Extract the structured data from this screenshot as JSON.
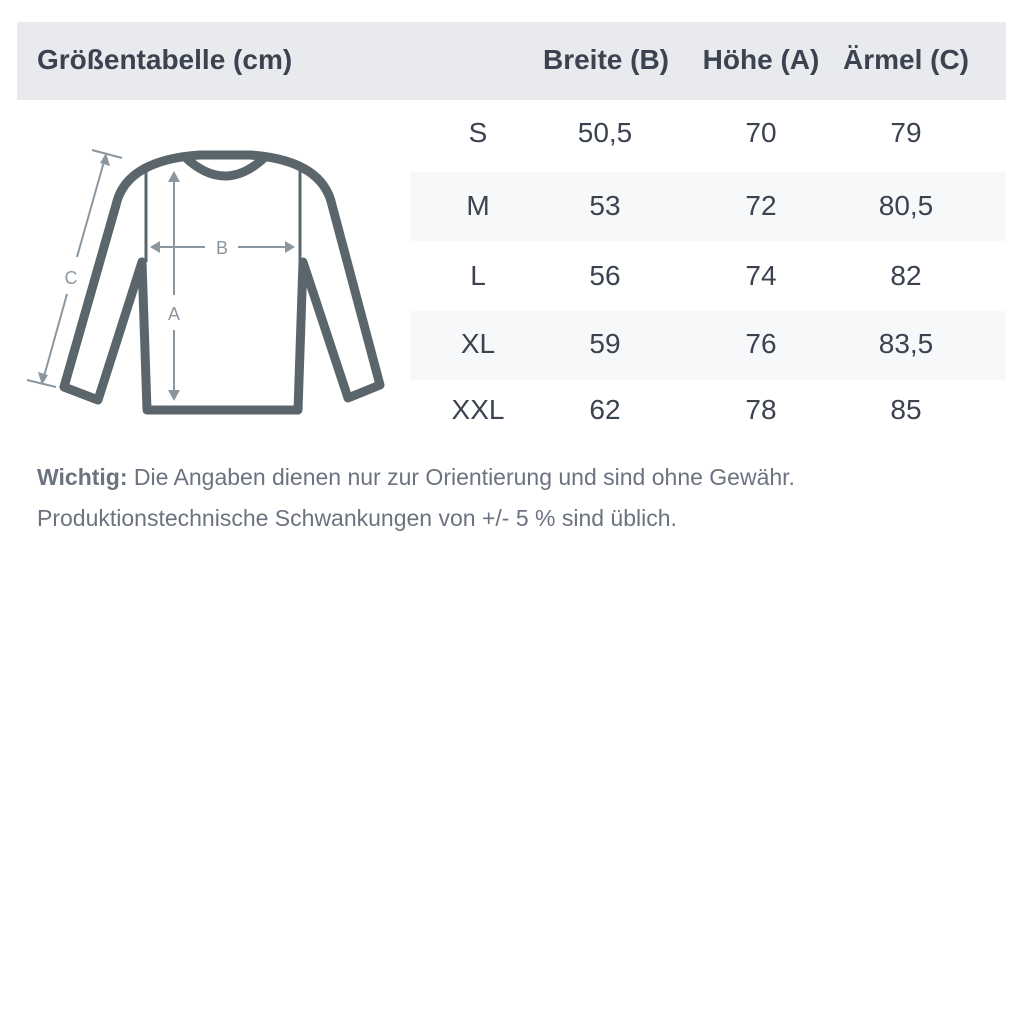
{
  "table": {
    "title": "Größentabelle (cm)",
    "columns": [
      "Breite (B)",
      "Höhe (A)",
      "Ärmel (C)"
    ],
    "rows": [
      {
        "size": "S",
        "values": [
          "50,5",
          "70",
          "79"
        ]
      },
      {
        "size": "M",
        "values": [
          "53",
          "72",
          "80,5"
        ]
      },
      {
        "size": "L",
        "values": [
          "56",
          "74",
          "82"
        ]
      },
      {
        "size": "XL",
        "values": [
          "59",
          "76",
          "83,5"
        ]
      },
      {
        "size": "XXL",
        "values": [
          "62",
          "78",
          "85"
        ]
      }
    ]
  },
  "diagram": {
    "labels": {
      "a": "A",
      "b": "B",
      "c": "C"
    }
  },
  "note": {
    "label": "Wichtig:",
    "line1": " Die Angaben dienen nur zur Orientierung und sind ohne Gewähr.",
    "line2": "Produktionstechnische Schwankungen von +/- 5 % sind üblich."
  },
  "colors": {
    "header_bg": "#e9eaee",
    "stripe_bg": "#f7f8fa",
    "text": "#3c4350",
    "garment": "#5a666c",
    "measure": "#8a96a0"
  }
}
